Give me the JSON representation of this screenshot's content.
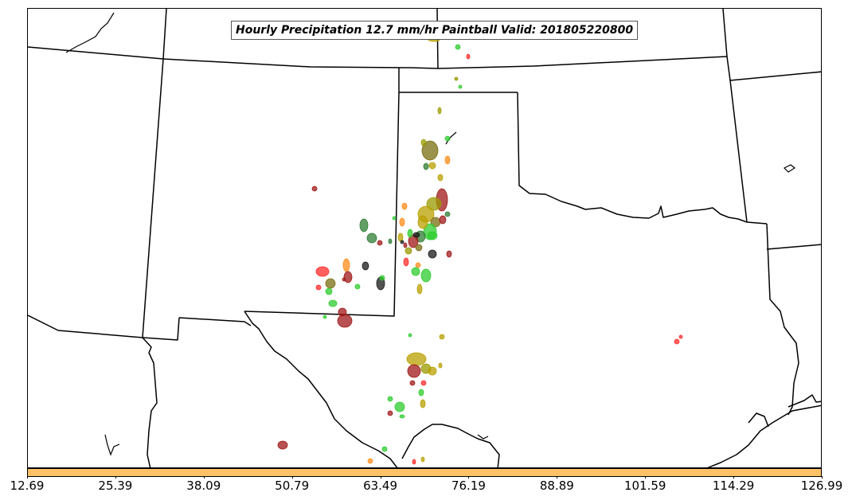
{
  "title": "Hourly Precipitation 12.7 mm/hr Paintball Valid: 201805220800",
  "colorbar": {
    "color": "#ffc266",
    "tick_labels": [
      "12.69",
      "25.39",
      "38.09",
      "50.79",
      "63.49",
      "76.19",
      "88.89",
      "101.59",
      "114.29",
      "126.99"
    ]
  },
  "member_colors": [
    "#a01818",
    "#ff2a2a",
    "#2ecc2e",
    "#999900",
    "#2e7d32",
    "#ff8c1a",
    "#b8a000",
    "#1a1a1a",
    "#7a6e10"
  ]
}
